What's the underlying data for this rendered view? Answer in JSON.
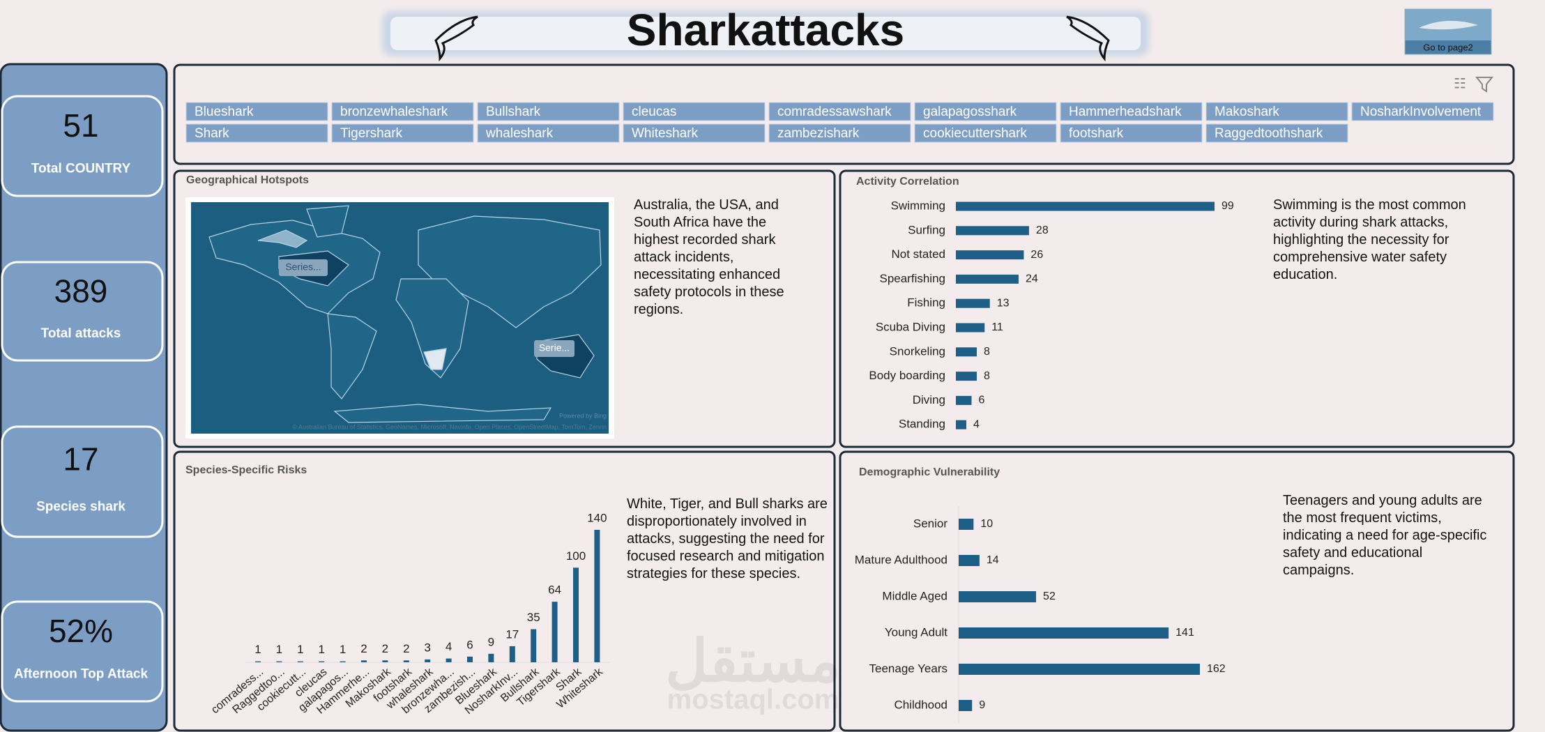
{
  "header": {
    "title": "Sharkattacks",
    "button": "Go to page2"
  },
  "kpis": [
    {
      "value": "51",
      "label": "Total COUNTRY"
    },
    {
      "value": "389",
      "label": "Total attacks"
    },
    {
      "value": "17",
      "label": "Species shark"
    },
    {
      "value": "52%",
      "label": "Afternoon Top Attack"
    }
  ],
  "slicer": [
    "Blueshark",
    "bronzewhaleshark",
    "Bullshark",
    "cleucas",
    "comradessawshark",
    "galapagosshark",
    "Hammerheadshark",
    "Makoshark",
    "NosharkInvolvement",
    "Shark",
    "Tigershark",
    "whaleshark",
    "Whiteshark",
    "zambezishark",
    "cookiecuttershark",
    "footshark",
    "Raggedtoothshark"
  ],
  "map": {
    "title": "Geographical Hotspots",
    "text": "Australia, the USA, and South Africa have the highest recorded shark attack incidents, necessitating enhanced safety protocols in these regions.",
    "labels": [
      "Series...",
      "Serie..."
    ],
    "credit_bing": "Powered by Bing",
    "credit": "© Australian Bureau of Statistics, GeoNames, Microsoft, Navinfo, Open Places, OpenStreetMap, TomTom, Zenrin"
  },
  "watermark": {
    "arabic": "مستقل",
    "latin": "mostaql.com"
  },
  "chart_data": [
    {
      "type": "bar",
      "orientation": "horizontal",
      "title": "Activity Correlation",
      "note": "Swimming is the most common activity during shark attacks, highlighting the necessity for comprehensive water safety education.",
      "categories": [
        "Swimming",
        "Surfing",
        "Not stated",
        "Spearfishing",
        "Fishing",
        "Scuba Diving",
        "Snorkeling",
        "Body boarding",
        "Diving",
        "Standing"
      ],
      "values": [
        99,
        28,
        26,
        24,
        13,
        11,
        8,
        8,
        6,
        4
      ],
      "color": "#1d5f86"
    },
    {
      "type": "bar",
      "orientation": "vertical",
      "title": "Species-Specific Risks",
      "note": "White, Tiger, and Bull sharks are disproportionately involved in attacks, suggesting the need for focused research and mitigation strategies for these species.",
      "categories": [
        "comradess...",
        "Raggedtoo...",
        "cookiecutt...",
        "cleucas",
        "galapagos...",
        "Hammerhe...",
        "Makoshark",
        "footshark",
        "whaleshark",
        "bronzewha...",
        "zambezish...",
        "Blueshark",
        "NosharkInv...",
        "Bullshark",
        "Tigershark",
        "Shark",
        "Whiteshark"
      ],
      "values": [
        1,
        1,
        1,
        1,
        1,
        2,
        2,
        2,
        3,
        4,
        6,
        9,
        17,
        35,
        64,
        100,
        140
      ],
      "color": "#1d5f86"
    },
    {
      "type": "bar",
      "orientation": "horizontal",
      "title": "Demographic Vulnerability",
      "note": "Teenagers and young adults are the most frequent victims, indicating a need for age-specific safety and educational campaigns.",
      "categories": [
        "Senior",
        "Mature Adulthood",
        "Middle Aged",
        "Young Adult",
        "Teenage Years",
        "Childhood"
      ],
      "values": [
        10,
        14,
        52,
        141,
        162,
        9
      ],
      "color": "#1d5f86"
    }
  ]
}
